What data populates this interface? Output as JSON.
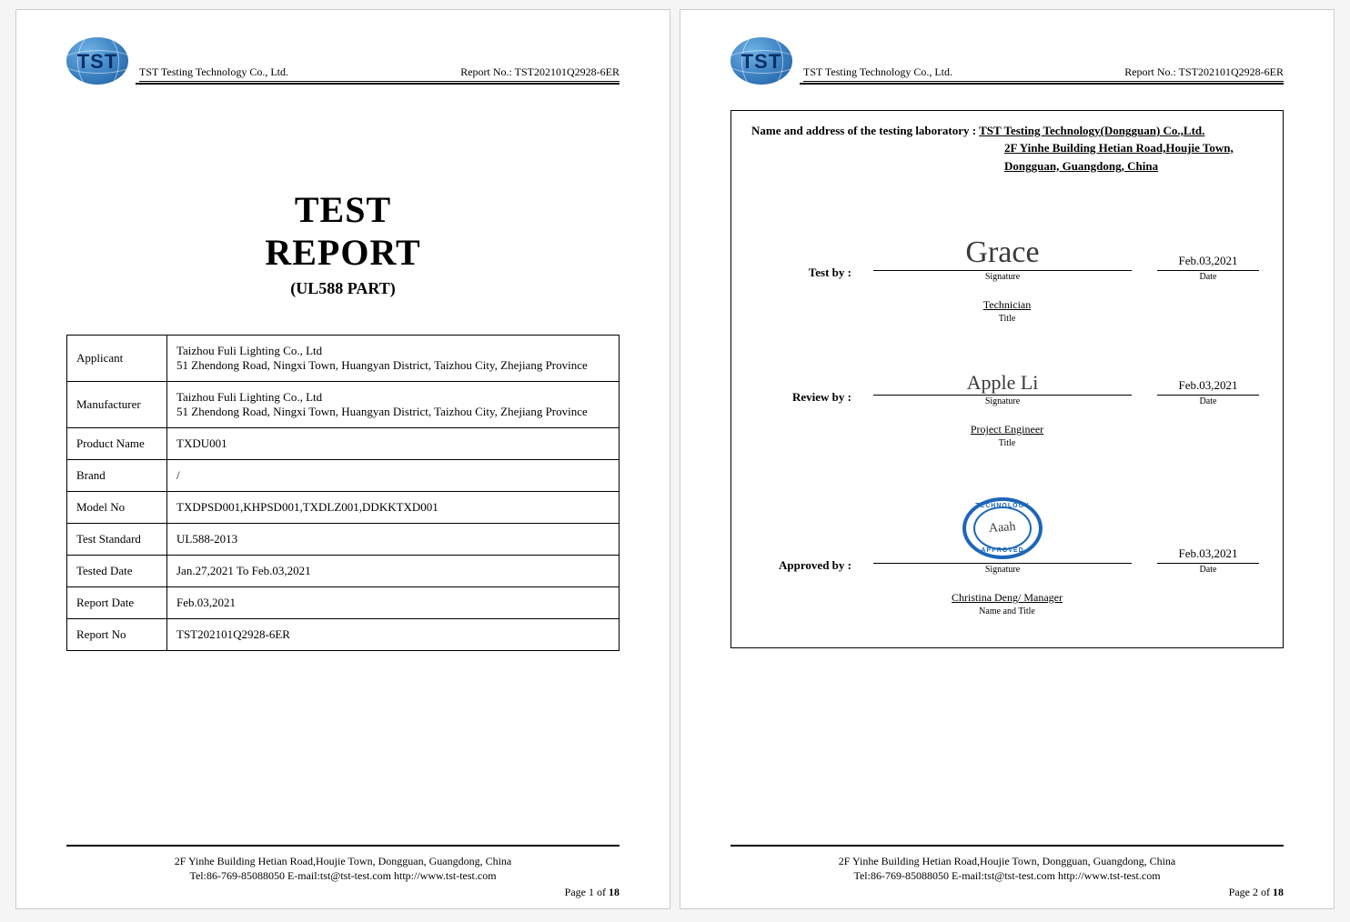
{
  "company": "TST Testing Technology Co., Ltd.",
  "report_no_label": "Report No.: ",
  "report_no": "TST202101Q2928-6ER",
  "logo_text": "TST",
  "title": {
    "line1": "TEST",
    "line2": "REPORT",
    "sub": "(UL588 PART)"
  },
  "info_table": {
    "rows": [
      {
        "label": "Applicant",
        "value": "Taizhou Fuli Lighting Co., Ltd\n51 Zhendong Road, Ningxi Town, Huangyan District, Taizhou City, Zhejiang Province"
      },
      {
        "label": "Manufacturer",
        "value": "Taizhou Fuli Lighting Co., Ltd\n51 Zhendong Road, Ningxi Town, Huangyan District, Taizhou City, Zhejiang Province"
      },
      {
        "label": "Product Name",
        "value": "TXDU001"
      },
      {
        "label": "Brand",
        "value": "/"
      },
      {
        "label": "Model No",
        "value": "TXDPSD001,KHPSD001,TXDLZ001,DDKKTXD001"
      },
      {
        "label": "Test Standard",
        "value": "UL588-2013"
      },
      {
        "label": "Tested Date",
        "value": "Jan.27,2021 To Feb.03,2021"
      },
      {
        "label": "Report Date",
        "value": "Feb.03,2021"
      },
      {
        "label": "Report No",
        "value": "TST202101Q2928-6ER"
      }
    ]
  },
  "footer": {
    "addr": "2F Yinhe Building Hetian Road,Houjie Town, Dongguan, Guangdong, China",
    "contact": "Tel:86-769-85088050 E-mail:tst@tst-test.com http://www.tst-test.com"
  },
  "page1": {
    "current": "1",
    "total": "18",
    "prefix": "Page ",
    "of": " of "
  },
  "page2": {
    "current": "2",
    "total": "18",
    "prefix": "Page ",
    "of": " of "
  },
  "lab": {
    "label": "Name and address of the testing laboratory :  ",
    "name": "TST Testing Technology(Dongguan) Co.,Ltd.",
    "addr1": "2F Yinhe Building Hetian Road,Houjie Town,",
    "addr2": "Dongguan, Guangdong, China"
  },
  "sigs": {
    "test": {
      "label": "Test     by  :",
      "signature": "Grace",
      "date": "Feb.03,2021",
      "title": "Technician",
      "sub_sig": "Signature",
      "sub_date": "Date",
      "sub_title": "Title"
    },
    "review": {
      "label": "Review by  :",
      "signature": "Apple Li",
      "date": "Feb.03,2021",
      "title": "Project Engineer",
      "sub_sig": "Signature",
      "sub_date": "Date",
      "sub_title": "Title"
    },
    "approved": {
      "label": "Approved by :",
      "stamp_top": "TECHNOLOGY",
      "stamp_sig": "Aaah",
      "stamp_bot": "APPROVED",
      "date": "Feb.03,2021",
      "name_title": "Christina Deng/ Manager",
      "sub_sig": "Signature",
      "sub_date": "Date",
      "sub_name": "Name and Title"
    }
  }
}
